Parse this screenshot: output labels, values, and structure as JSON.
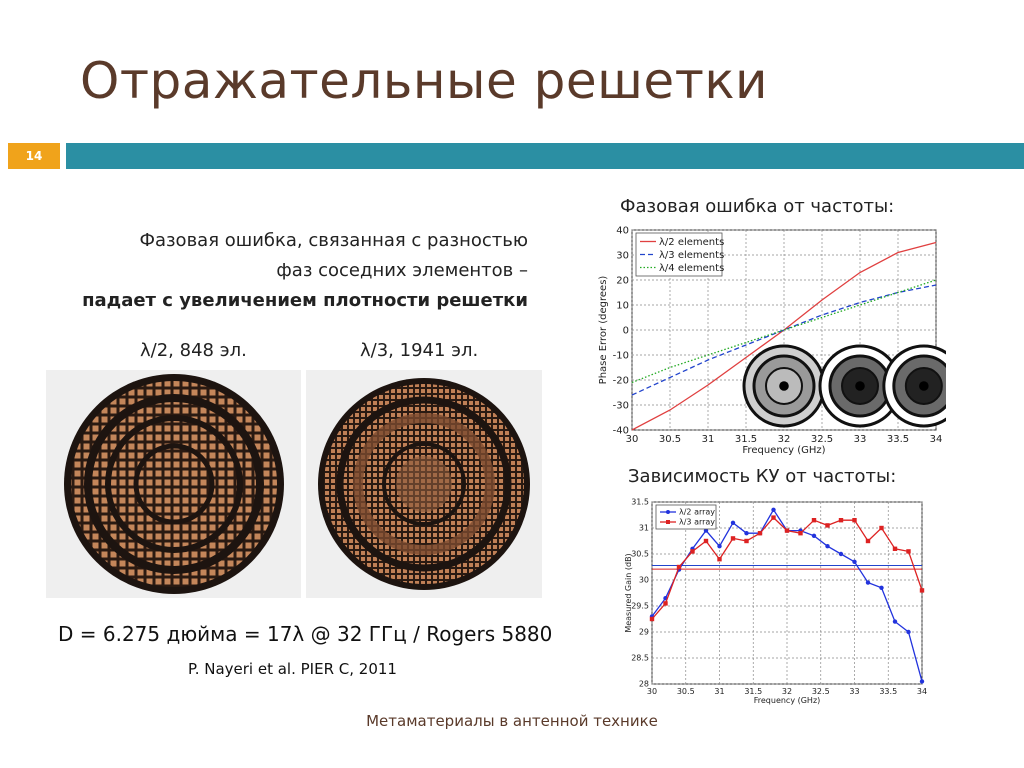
{
  "slide": {
    "title": "Отражательные решетки",
    "number": "14",
    "footer": "Метаматериалы в антенной технике",
    "accent_color": "#2b8fa3",
    "number_color": "#f0a31b"
  },
  "description": {
    "line1": "Фазовая ошибка, связанная с разностью",
    "line2": "фаз соседних элементов –",
    "line3": "падает с увеличением плотности решетки"
  },
  "arrays": {
    "left_label": "λ/2, 848 эл.",
    "right_label": "λ/3, 1941 эл."
  },
  "formula": "D = 6.275 дюйма = 17λ @ 32 ГГц / Rogers 5880",
  "reference": "P. Nayeri et al. PIER C, 2011",
  "chart_data": [
    {
      "type": "line",
      "title": "Фазовая ошибка от частоты:",
      "xlabel": "Frequency (GHz)",
      "ylabel": "Phase Error (degrees)",
      "xlim": [
        30,
        34
      ],
      "ylim": [
        -40,
        40
      ],
      "xticks": [
        "30",
        "30.5",
        "31",
        "31.5",
        "32",
        "32.5",
        "33",
        "33.5",
        "34"
      ],
      "yticks": [
        "40",
        "30",
        "20",
        "10",
        "0",
        "-10",
        "-20",
        "-30",
        "-40"
      ],
      "grid": true,
      "legend": "top-left",
      "x": [
        30,
        30.5,
        31,
        31.5,
        32,
        32.5,
        33,
        33.5,
        34
      ],
      "series": [
        {
          "name": "λ/2 elements",
          "color": "#e04040",
          "dash": "solid",
          "values": [
            -40,
            -32,
            -22,
            -11,
            0,
            12,
            23,
            31,
            35
          ]
        },
        {
          "name": "λ/3 elements",
          "color": "#2244cc",
          "dash": "dashed",
          "values": [
            -26,
            -19,
            -12,
            -6,
            0,
            6,
            11,
            15,
            18
          ]
        },
        {
          "name": "λ/4 elements",
          "color": "#22aa22",
          "dash": "dotted",
          "values": [
            -21,
            -15,
            -10,
            -5,
            0,
            5,
            10,
            15,
            20
          ]
        }
      ]
    },
    {
      "type": "line",
      "title": "Зависимость КУ от частоты:",
      "xlabel": "Frequency (GHz)",
      "ylabel": "Measured Gain (dB)",
      "xlim": [
        30,
        34
      ],
      "ylim": [
        28,
        31.5
      ],
      "xticks": [
        "30",
        "30.5",
        "31",
        "31.5",
        "32",
        "32.5",
        "33",
        "33.5",
        "34"
      ],
      "yticks": [
        "31.5",
        "31",
        "30.5",
        "30",
        "29.5",
        "29",
        "28.5",
        "28"
      ],
      "grid": true,
      "legend": "top-left",
      "x": [
        30,
        30.2,
        30.4,
        30.6,
        30.8,
        31,
        31.2,
        31.4,
        31.6,
        31.8,
        32,
        32.2,
        32.4,
        32.6,
        32.8,
        33,
        33.2,
        33.4,
        33.6,
        33.8,
        34
      ],
      "hlines": [
        {
          "value": 30.28,
          "color": "#2244cc"
        },
        {
          "value": 30.21,
          "color": "#dd2222"
        }
      ],
      "series": [
        {
          "name": "λ/2 array",
          "color": "#2233dd",
          "values": [
            29.3,
            29.65,
            30.2,
            30.6,
            30.95,
            30.65,
            31.1,
            30.9,
            30.9,
            31.35,
            30.95,
            30.95,
            30.85,
            30.65,
            30.5,
            30.35,
            29.95,
            29.85,
            29.2,
            29.0,
            28.05
          ]
        },
        {
          "name": "λ/3 array",
          "color": "#dd2222",
          "values": [
            29.25,
            29.55,
            30.25,
            30.55,
            30.75,
            30.4,
            30.8,
            30.75,
            30.9,
            31.2,
            30.95,
            30.9,
            31.15,
            31.05,
            31.15,
            31.15,
            30.75,
            31.0,
            30.6,
            30.55,
            29.8
          ]
        }
      ]
    }
  ]
}
